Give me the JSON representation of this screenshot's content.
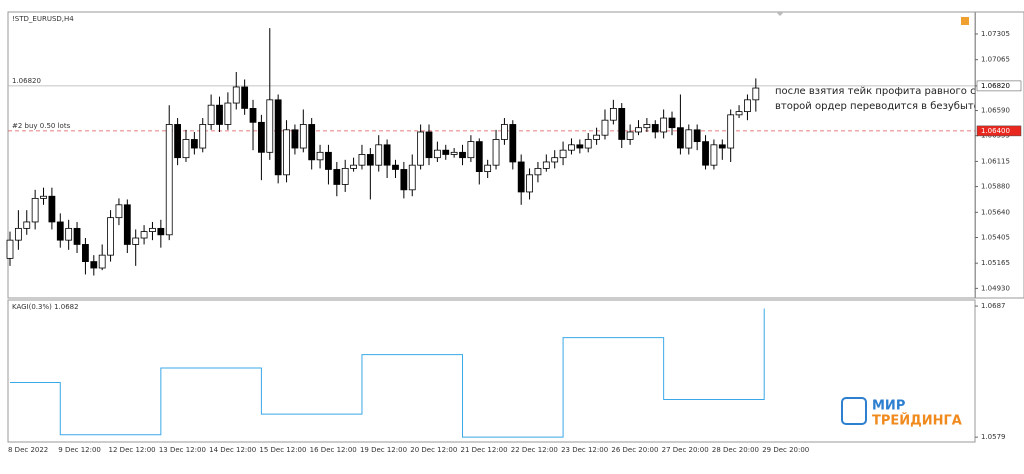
{
  "chart_data": [
    {
      "type": "candlestick",
      "title": "!STD_EURUSD,H4",
      "categories": [
        "8 Dec 2022",
        null,
        null,
        null,
        null,
        null,
        "9 Dec 12:00",
        null,
        null,
        null,
        null,
        null,
        "12 Dec 12:00",
        null,
        null,
        null,
        null,
        null,
        "13 Dec 12:00",
        null,
        null,
        null,
        null,
        null,
        "14 Dec 12:00",
        null,
        null,
        null,
        null,
        null,
        "15 Dec 12:00",
        null,
        null,
        null,
        null,
        null,
        "16 Dec 12:00",
        null,
        null,
        null,
        null,
        null,
        "19 Dec 12:00",
        null,
        null,
        null,
        null,
        null,
        "20 Dec 12:00",
        null,
        null,
        null,
        null,
        null,
        "21 Dec 12:00",
        null,
        null,
        null,
        null,
        null,
        "22 Dec 12:00",
        null,
        null,
        null,
        null,
        null,
        "23 Dec 12:00",
        null,
        null,
        null,
        null,
        null,
        "26 Dec 20:00",
        null,
        null,
        null,
        null,
        null,
        "27 Dec 20:00",
        null,
        null,
        null,
        null,
        null,
        "28 Dec 20:00",
        null,
        null,
        null,
        null,
        null,
        "29 Dec 20:00"
      ],
      "open": [
        1.0521,
        1.0538,
        1.0549,
        1.0555,
        1.0577,
        1.0579,
        1.0555,
        1.0538,
        1.0549,
        1.0534,
        1.0518,
        1.0512,
        1.0524,
        1.0559,
        1.0571,
        1.0534,
        1.054,
        1.0546,
        1.0549,
        1.0543,
        1.0646,
        1.0615,
        1.0632,
        1.0624,
        1.0646,
        1.0664,
        1.0646,
        1.0666,
        1.0681,
        1.0661,
        1.0648,
        1.062,
        1.0669,
        1.0599,
        1.0641,
        1.0624,
        1.0646,
        1.0613,
        1.062,
        1.0604,
        1.059,
        1.0605,
        1.0608,
        1.0618,
        1.0608,
        1.0627,
        1.0608,
        1.0604,
        1.0585,
        1.0608,
        1.0639,
        1.0615,
        1.0622,
        1.0618,
        1.062,
        1.0615,
        1.063,
        1.0602,
        1.0608,
        1.0632,
        1.0646,
        1.0611,
        1.0583,
        1.0599,
        1.0605,
        1.0611,
        1.0615,
        1.0622,
        1.0627,
        1.0624,
        1.0632,
        1.0636,
        1.065,
        1.0661,
        1.0632,
        1.0639,
        1.0643,
        1.0646,
        1.0639,
        1.0652,
        1.0643,
        1.0624,
        1.0641,
        1.063,
        1.0608,
        1.0627,
        1.0624,
        1.0655,
        1.0658,
        1.0669,
        null
      ],
      "high": [
        1.0546,
        1.0566,
        1.0566,
        1.0585,
        1.0587,
        1.0587,
        1.0563,
        1.0557,
        1.0555,
        1.054,
        1.0524,
        1.0534,
        1.0566,
        1.0577,
        1.0576,
        1.0548,
        1.0552,
        1.0555,
        1.0557,
        1.0664,
        1.0652,
        1.0641,
        1.0639,
        1.0652,
        1.0674,
        1.0672,
        1.0676,
        1.0695,
        1.0688,
        1.0669,
        1.0655,
        1.0736,
        1.0674,
        1.065,
        1.0646,
        1.066,
        1.0652,
        1.0627,
        1.0627,
        1.0611,
        1.0613,
        1.0615,
        1.0627,
        1.0624,
        1.0636,
        1.0632,
        1.0613,
        1.0611,
        1.0618,
        1.0646,
        1.0646,
        1.063,
        1.0627,
        1.0624,
        1.0627,
        1.0636,
        1.0633,
        1.0613,
        1.0641,
        1.0652,
        1.065,
        1.0618,
        1.0605,
        1.0611,
        1.0618,
        1.0622,
        1.063,
        1.0633,
        1.0632,
        1.0638,
        1.0643,
        1.066,
        1.0669,
        1.0666,
        1.0646,
        1.065,
        1.0652,
        1.065,
        1.066,
        1.0658,
        1.0674,
        1.0646,
        1.0646,
        1.0636,
        1.0632,
        1.0632,
        1.066,
        1.0664,
        1.0674,
        1.0689,
        null
      ],
      "low": [
        1.0514,
        1.0529,
        1.0543,
        1.0548,
        1.0571,
        1.0548,
        1.0531,
        1.0529,
        1.0526,
        1.0506,
        1.0505,
        1.051,
        1.0518,
        1.0552,
        1.0526,
        1.0514,
        1.0534,
        1.0538,
        1.0531,
        1.0538,
        1.0608,
        1.0611,
        1.0618,
        1.062,
        1.0641,
        1.0639,
        1.0641,
        1.066,
        1.0655,
        1.0622,
        1.0594,
        1.0613,
        1.0591,
        1.0592,
        1.0618,
        1.062,
        1.0604,
        1.0605,
        1.059,
        1.0579,
        1.0583,
        1.0602,
        1.0604,
        1.0576,
        1.0602,
        1.0596,
        1.0596,
        1.0577,
        1.0579,
        1.0604,
        1.0608,
        1.0611,
        1.0613,
        1.0615,
        1.0608,
        1.0611,
        1.059,
        1.0596,
        1.0604,
        1.0627,
        1.0604,
        1.0571,
        1.0576,
        1.0592,
        1.0602,
        1.0605,
        1.0608,
        1.0618,
        1.0619,
        1.062,
        1.0627,
        1.0632,
        1.0646,
        1.0624,
        1.0627,
        1.0636,
        1.0639,
        1.0633,
        1.0633,
        1.0636,
        1.0618,
        1.0618,
        1.0622,
        1.0604,
        1.0604,
        1.0613,
        1.0611,
        1.0652,
        1.065,
        1.0658,
        null
      ],
      "close": [
        1.0538,
        1.0549,
        1.0555,
        1.0577,
        1.0579,
        1.0555,
        1.0538,
        1.0549,
        1.0534,
        1.0518,
        1.0512,
        1.0524,
        1.0559,
        1.0571,
        1.0534,
        1.054,
        1.0546,
        1.0549,
        1.0543,
        1.0646,
        1.0615,
        1.0632,
        1.0624,
        1.0646,
        1.0664,
        1.0646,
        1.0666,
        1.0681,
        1.0661,
        1.0648,
        1.062,
        1.0669,
        1.0599,
        1.0641,
        1.0624,
        1.0646,
        1.0613,
        1.062,
        1.0604,
        1.059,
        1.0605,
        1.0608,
        1.0618,
        1.0608,
        1.0627,
        1.0608,
        1.0604,
        1.0585,
        1.0608,
        1.0639,
        1.0615,
        1.0622,
        1.0618,
        1.062,
        1.0615,
        1.063,
        1.0602,
        1.0608,
        1.0632,
        1.0646,
        1.0611,
        1.0583,
        1.0599,
        1.0605,
        1.0611,
        1.0615,
        1.0622,
        1.0627,
        1.0624,
        1.0632,
        1.0636,
        1.065,
        1.0661,
        1.0632,
        1.0639,
        1.0643,
        1.0646,
        1.0639,
        1.0652,
        1.0643,
        1.0624,
        1.0641,
        1.063,
        1.0608,
        1.0627,
        1.0624,
        1.0655,
        1.0658,
        1.0669,
        1.068,
        null
      ],
      "up_color": "#ffffff",
      "down_color": "#000000",
      "ylim": [
        1.0484,
        1.0751
      ],
      "yticks": [
        1.07305,
        1.07065,
        {
          "value": 1.0682,
          "label": "1.06820"
        },
        {
          "value": 1.0659,
          "label": "1.06590"
        },
        1.06355,
        1.06115,
        {
          "value": 1.0588,
          "label": "1.05880"
        },
        {
          "value": 1.0564,
          "label": "1.05640"
        },
        1.05405,
        1.05165,
        {
          "value": 1.0493,
          "label": "1.04930"
        }
      ],
      "hlines": [
        {
          "value": 1.0682,
          "label": "1.06820",
          "text": "1.06820",
          "color": "#b0b0b0",
          "box": "#ffffff"
        },
        {
          "value": 1.064,
          "label": "1.06400",
          "text": "#2 buy 0.50 lots",
          "color": "#e05050",
          "box": "#e8281e"
        }
      ],
      "annotation": [
        "после взятия тейк профита равного стоп лосс",
        "второй ордер переводится в безубыток"
      ]
    },
    {
      "type": "line",
      "title": "KAGI(0.3%) 1.0682",
      "color": "#3aa8e8",
      "x": [
        0,
        6,
        6,
        18,
        18,
        30,
        30,
        42,
        42,
        54,
        54,
        66,
        66,
        78,
        78,
        90,
        90
      ],
      "values": [
        1.0624,
        1.0624,
        1.0581,
        1.0581,
        1.0636,
        1.0636,
        1.0598,
        1.0598,
        1.0647,
        1.0647,
        1.0579,
        1.0579,
        1.0661,
        1.0661,
        1.061,
        1.061,
        1.0685
      ],
      "ylim": [
        1.0575,
        1.0692
      ],
      "yticks": [
        1.0687,
        1.0579
      ]
    }
  ],
  "logo": {
    "line1": "МИР",
    "line2": "ТРЕЙДИНГА"
  }
}
